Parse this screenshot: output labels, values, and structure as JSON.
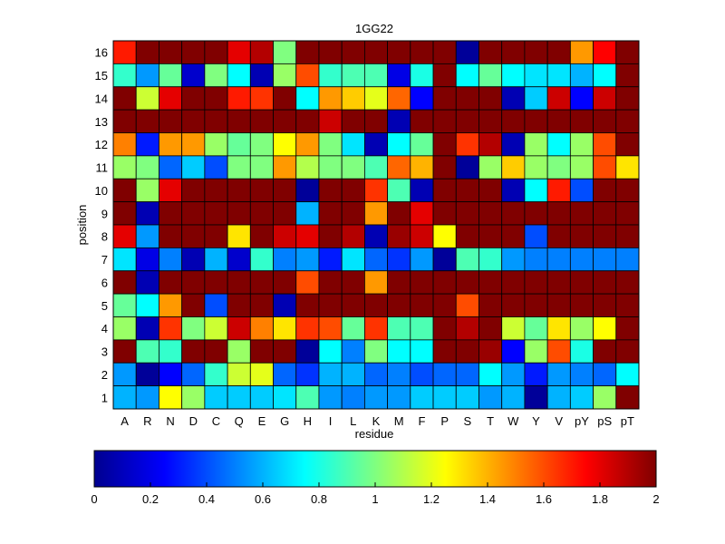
{
  "chart_data": {
    "type": "heatmap",
    "title": "1GG22",
    "xlabel": "residue",
    "ylabel": "position",
    "x_categories": [
      "A",
      "R",
      "N",
      "D",
      "C",
      "Q",
      "E",
      "G",
      "H",
      "I",
      "L",
      "K",
      "M",
      "F",
      "P",
      "S",
      "T",
      "W",
      "Y",
      "V",
      "pY",
      "pS",
      "pT"
    ],
    "y_categories": [
      "1",
      "2",
      "3",
      "4",
      "5",
      "6",
      "7",
      "8",
      "9",
      "10",
      "11",
      "12",
      "13",
      "14",
      "15",
      "16"
    ],
    "colormap": "jet",
    "colorbar": {
      "range": [
        0,
        2
      ],
      "ticks": [
        "0",
        "0.2",
        "0.4",
        "0.6",
        "0.8",
        "1",
        "1.2",
        "1.4",
        "1.6",
        "1.8",
        "2"
      ],
      "orientation": "horizontal",
      "placement": "bottom"
    },
    "rows": [
      {
        "position": "16",
        "values": [
          1.7,
          2.0,
          2.0,
          2.0,
          2.0,
          1.8,
          1.9,
          1.0,
          2.0,
          2.0,
          2.0,
          2.0,
          2.0,
          2.0,
          2.0,
          0.05,
          2.0,
          2.0,
          2.0,
          2.0,
          1.45,
          1.75,
          2.0
        ]
      },
      {
        "position": "15",
        "values": [
          0.85,
          0.55,
          0.95,
          0.15,
          1.0,
          0.75,
          0.1,
          1.05,
          1.6,
          0.85,
          0.9,
          0.9,
          0.2,
          0.8,
          2.0,
          0.75,
          0.95,
          0.75,
          0.7,
          0.7,
          0.6,
          0.75,
          2.0
        ]
      },
      {
        "position": "14",
        "values": [
          2.0,
          1.15,
          1.8,
          2.0,
          2.0,
          1.7,
          1.65,
          2.0,
          0.75,
          1.45,
          1.35,
          1.2,
          1.55,
          0.25,
          2.0,
          2.0,
          2.0,
          0.1,
          0.65,
          1.85,
          0.25,
          1.85,
          2.0
        ]
      },
      {
        "position": "13",
        "values": [
          2.0,
          2.0,
          2.0,
          2.0,
          2.0,
          2.0,
          2.0,
          2.0,
          2.0,
          1.85,
          2.0,
          2.0,
          0.1,
          2.0,
          2.0,
          2.0,
          2.0,
          2.0,
          2.0,
          2.0,
          2.0,
          2.0,
          2.0
        ]
      },
      {
        "position": "12",
        "values": [
          1.5,
          0.3,
          1.45,
          1.45,
          1.05,
          0.95,
          1.0,
          1.25,
          1.45,
          1.0,
          0.7,
          0.1,
          0.75,
          0.95,
          2.0,
          1.65,
          1.9,
          0.1,
          1.05,
          0.75,
          1.05,
          1.6,
          2.0
        ]
      },
      {
        "position": "11",
        "values": [
          1.05,
          1.0,
          0.45,
          0.65,
          0.4,
          1.0,
          1.0,
          1.45,
          1.1,
          1.0,
          1.0,
          0.9,
          1.55,
          1.4,
          2.0,
          0.05,
          1.05,
          1.35,
          1.05,
          1.0,
          1.05,
          1.6,
          1.3
        ]
      },
      {
        "position": "10",
        "values": [
          2.0,
          1.05,
          1.8,
          2.0,
          2.0,
          2.0,
          2.0,
          2.0,
          0.05,
          2.0,
          2.0,
          1.65,
          0.9,
          0.1,
          2.0,
          2.0,
          2.0,
          0.1,
          0.75,
          1.7,
          0.4,
          2.0,
          2.0
        ]
      },
      {
        "position": "9",
        "values": [
          2.0,
          0.1,
          2.0,
          2.0,
          2.0,
          2.0,
          2.0,
          2.0,
          0.6,
          2.0,
          2.0,
          1.45,
          2.0,
          1.8,
          2.0,
          2.0,
          2.0,
          2.0,
          2.0,
          2.0,
          2.0,
          2.0,
          2.0
        ]
      },
      {
        "position": "8",
        "values": [
          1.8,
          0.55,
          2.0,
          2.0,
          2.0,
          1.3,
          2.0,
          1.85,
          1.8,
          2.0,
          1.9,
          0.1,
          1.95,
          1.85,
          1.25,
          2.0,
          2.0,
          2.0,
          0.4,
          2.0,
          2.0,
          2.0,
          2.0
        ]
      },
      {
        "position": "7",
        "values": [
          0.7,
          0.2,
          0.5,
          0.1,
          0.6,
          0.15,
          0.85,
          0.5,
          0.55,
          0.3,
          0.7,
          0.45,
          0.35,
          0.55,
          0.05,
          0.9,
          0.85,
          0.55,
          0.5,
          0.5,
          0.5,
          0.5,
          0.5
        ]
      },
      {
        "position": "6",
        "values": [
          2.0,
          0.1,
          2.0,
          2.0,
          2.0,
          2.0,
          2.0,
          2.0,
          1.6,
          2.0,
          2.0,
          1.45,
          2.0,
          2.0,
          2.0,
          2.0,
          2.0,
          2.0,
          2.0,
          2.0,
          2.0,
          2.0,
          2.0
        ]
      },
      {
        "position": "5",
        "values": [
          0.95,
          0.75,
          1.45,
          2.0,
          0.4,
          2.0,
          2.0,
          0.1,
          2.0,
          2.0,
          2.0,
          2.0,
          2.0,
          2.0,
          2.0,
          1.6,
          2.0,
          2.0,
          2.0,
          2.0,
          2.0,
          2.0,
          2.0
        ]
      },
      {
        "position": "4",
        "values": [
          1.05,
          0.1,
          1.65,
          1.0,
          1.15,
          1.85,
          1.5,
          1.3,
          1.65,
          1.6,
          0.95,
          1.65,
          0.9,
          0.9,
          2.0,
          1.9,
          2.0,
          1.15,
          0.95,
          1.3,
          1.05,
          1.25,
          2.0
        ]
      },
      {
        "position": "3",
        "values": [
          2.0,
          0.9,
          0.85,
          2.0,
          2.0,
          1.05,
          2.0,
          2.0,
          0.05,
          0.75,
          0.5,
          1.0,
          0.75,
          0.75,
          2.0,
          2.0,
          1.95,
          0.25,
          1.05,
          1.6,
          0.8,
          2.0,
          2.0
        ]
      },
      {
        "position": "2",
        "values": [
          0.55,
          0.05,
          0.25,
          0.45,
          0.85,
          1.15,
          1.2,
          0.45,
          0.35,
          0.6,
          0.6,
          0.45,
          0.5,
          0.4,
          0.45,
          0.45,
          0.75,
          0.55,
          0.3,
          0.55,
          0.5,
          0.45,
          0.75
        ]
      },
      {
        "position": "1",
        "values": [
          0.6,
          0.55,
          1.25,
          1.05,
          0.65,
          0.65,
          0.65,
          0.7,
          0.9,
          0.55,
          0.5,
          0.55,
          0.55,
          0.65,
          0.65,
          0.65,
          0.55,
          0.6,
          0.05,
          0.6,
          0.65,
          1.05,
          2.0
        ]
      }
    ],
    "grid": false,
    "legend": "none"
  }
}
